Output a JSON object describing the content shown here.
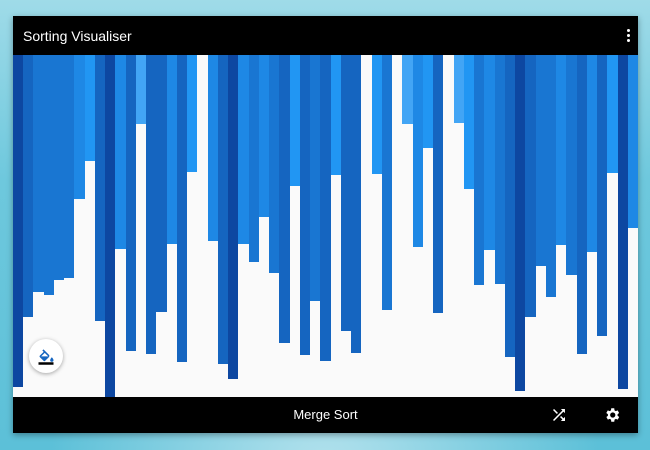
{
  "app": {
    "title": "Sorting Visualiser",
    "menu_icon": "more-vert-icon"
  },
  "visualiser": {
    "bar_heights": [
      332,
      262,
      237,
      240,
      225,
      223,
      144,
      106,
      266,
      342,
      194,
      296,
      69,
      299,
      257,
      189,
      307,
      117,
      0,
      186,
      309,
      324,
      189,
      207,
      162,
      218,
      288,
      131,
      300,
      246,
      306,
      120,
      276,
      298,
      0,
      119,
      255,
      0,
      69,
      192,
      93,
      258,
      0,
      68,
      134,
      230,
      195,
      229,
      302,
      336,
      262,
      211,
      242,
      190,
      220,
      299,
      197,
      281,
      118,
      334,
      173
    ],
    "min_value": 0,
    "max_value": 342,
    "palette": [
      "#0d47a1",
      "#1565c0",
      "#1976d2",
      "#1e88e5",
      "#2196f3",
      "#42a5f5",
      "#90caf9"
    ],
    "fab_icon": "paint-bucket-icon"
  },
  "bottom_bar": {
    "algorithm": "Merge Sort",
    "shuffle_icon": "shuffle-icon",
    "settings_icon": "gear-icon"
  }
}
